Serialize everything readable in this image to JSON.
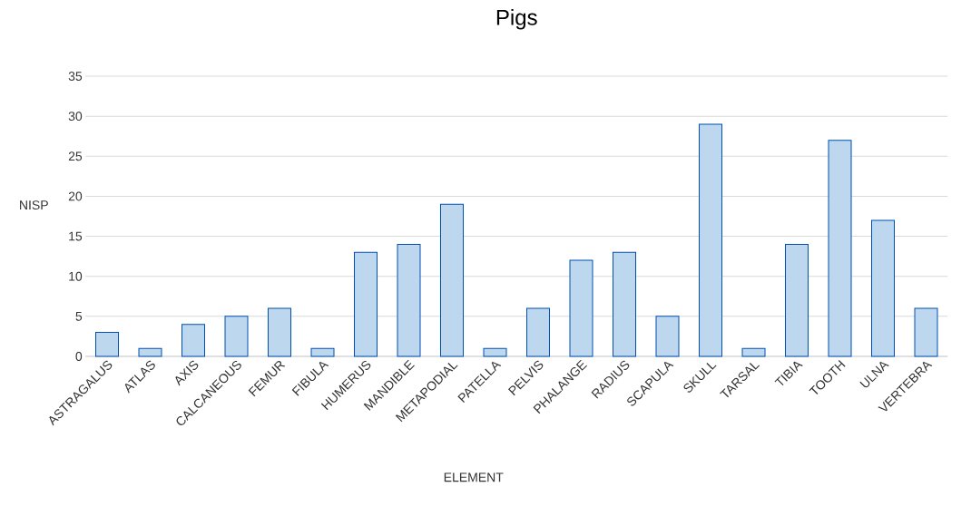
{
  "chart_data": {
    "type": "bar",
    "title": "Pigs",
    "xlabel": "ELEMENT",
    "ylabel": "NISP",
    "categories": [
      "ASTRAGALUS",
      "ATLAS",
      "AXIS",
      "CALCANEOUS",
      "FEMUR",
      "FIBULA",
      "HUMERUS",
      "MANDIBLE",
      "METAPODIAL",
      "PATELLA",
      "PELVIS",
      "PHALANGE",
      "RADIUS",
      "SCAPULA",
      "SKULL",
      "TARSAL",
      "TIBIA",
      "TOOTH",
      "ULNA",
      "VERTEBRA"
    ],
    "values": [
      3,
      1,
      4,
      5,
      6,
      1,
      13,
      14,
      19,
      1,
      6,
      12,
      13,
      5,
      29,
      1,
      14,
      27,
      17,
      6
    ],
    "color": "#bdd7ee",
    "ylim": [
      0,
      35
    ],
    "yticks": [
      0,
      5,
      10,
      15,
      20,
      25,
      30,
      35
    ],
    "grid": "y"
  }
}
